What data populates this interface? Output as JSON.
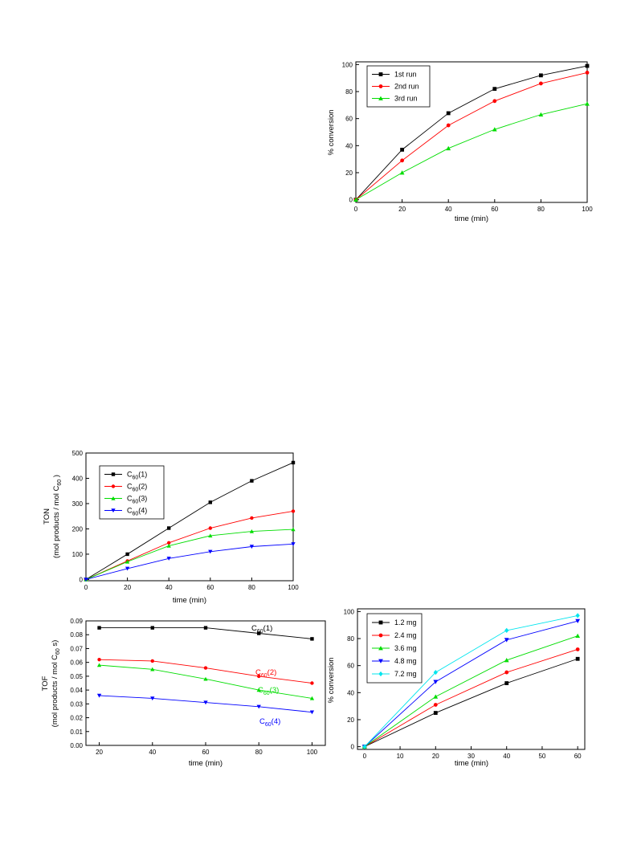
{
  "chart_data": [
    {
      "id": "run",
      "type": "line",
      "xlabel": "time (min)",
      "ylabel": "% conversion",
      "xlim": [
        0,
        100
      ],
      "ylim": [
        -2,
        102
      ],
      "xticks": [
        0,
        20,
        40,
        60,
        80,
        100
      ],
      "yticks": [
        0,
        20,
        40,
        60,
        80,
        100
      ],
      "x": [
        0,
        20,
        40,
        60,
        80,
        100
      ],
      "legend_position": "top-left",
      "series": [
        {
          "name": "1st run",
          "color": "#000000",
          "marker": "square",
          "values": [
            0,
            37,
            64,
            82,
            92,
            99
          ]
        },
        {
          "name": "2nd run",
          "color": "#ff0000",
          "marker": "circle",
          "values": [
            0,
            29,
            55,
            73,
            86,
            94
          ]
        },
        {
          "name": "3rd run",
          "color": "#00dd00",
          "marker": "triangle-up",
          "values": [
            0,
            20,
            38,
            52,
            63,
            71
          ]
        }
      ]
    },
    {
      "id": "ton",
      "type": "line",
      "xlabel": "time (min)",
      "ylabel_line1": "TON",
      "ylabel_line2": "(mol products / mol C",
      "ylabel_sub": "60",
      "ylabel_end": " )",
      "xlim": [
        0,
        100
      ],
      "ylim": [
        -5,
        500
      ],
      "xticks": [
        0,
        20,
        40,
        60,
        80,
        100
      ],
      "yticks": [
        0,
        100,
        200,
        300,
        400,
        500
      ],
      "x": [
        0,
        20,
        40,
        60,
        80,
        100
      ],
      "legend_position": "top-left",
      "series": [
        {
          "name": "C60(1)",
          "name_main": "C",
          "name_sub": "60",
          "name_end": "(1)",
          "color": "#000000",
          "marker": "square",
          "values": [
            0,
            100,
            203,
            305,
            390,
            462
          ]
        },
        {
          "name": "C60(2)",
          "name_main": "C",
          "name_sub": "60",
          "name_end": "(2)",
          "color": "#ff0000",
          "marker": "circle",
          "values": [
            0,
            73,
            145,
            203,
            243,
            270
          ]
        },
        {
          "name": "C60(3)",
          "name_main": "C",
          "name_sub": "60",
          "name_end": "(3)",
          "color": "#00dd00",
          "marker": "triangle-up",
          "values": [
            0,
            70,
            133,
            173,
            190,
            198
          ]
        },
        {
          "name": "C60(4)",
          "name_main": "C",
          "name_sub": "60",
          "name_end": "(4)",
          "color": "#0000ff",
          "marker": "triangle-down",
          "values": [
            0,
            43,
            83,
            110,
            130,
            140
          ]
        }
      ]
    },
    {
      "id": "tof",
      "type": "line",
      "xlabel": "time (min)",
      "ylabel_line1": "TOF",
      "ylabel_line2": "(mol products / mol C",
      "ylabel_sub": "60",
      "ylabel_end": " s)",
      "xlim": [
        15,
        105
      ],
      "ylim": [
        0,
        0.09
      ],
      "xticks": [
        20,
        40,
        60,
        80,
        100
      ],
      "yticks": [
        0.0,
        0.01,
        0.02,
        0.03,
        0.04,
        0.05,
        0.06,
        0.07,
        0.08,
        0.09
      ],
      "ytick_labels": [
        "0.00",
        "0.01",
        "0.02",
        "0.03",
        "0.04",
        "0.05",
        "0.06",
        "0.07",
        "0.08",
        "0.09"
      ],
      "x": [
        20,
        40,
        60,
        80,
        100
      ],
      "series": [
        {
          "name": "C60(1)",
          "name_main": "C",
          "name_sub": "60",
          "name_end": "(1)",
          "color": "#000000",
          "marker": "square",
          "values": [
            0.085,
            0.085,
            0.085,
            0.081,
            0.077
          ]
        },
        {
          "name": "C60(2)",
          "name_main": "C",
          "name_sub": "60",
          "name_end": "(2)",
          "color": "#ff0000",
          "marker": "circle",
          "values": [
            0.062,
            0.061,
            0.056,
            0.05,
            0.045
          ]
        },
        {
          "name": "C60(3)",
          "name_main": "C",
          "name_sub": "60",
          "name_end": "(3)",
          "color": "#00dd00",
          "marker": "triangle-up",
          "values": [
            0.058,
            0.055,
            0.048,
            0.04,
            0.034
          ]
        },
        {
          "name": "C60(4)",
          "name_main": "C",
          "name_sub": "60",
          "name_end": "(4)",
          "color": "#0000ff",
          "marker": "triangle-down",
          "values": [
            0.036,
            0.034,
            0.031,
            0.028,
            0.024
          ]
        }
      ]
    },
    {
      "id": "mass",
      "type": "line",
      "xlabel": "time (min)",
      "ylabel": "% conversion",
      "xlim": [
        -2,
        62
      ],
      "ylim": [
        -2,
        102
      ],
      "xticks": [
        0,
        10,
        20,
        30,
        40,
        50,
        60
      ],
      "yticks": [
        0,
        20,
        40,
        60,
        80,
        100
      ],
      "x": [
        0,
        20,
        40,
        60
      ],
      "legend_position": "top-left",
      "series": [
        {
          "name": "1.2 mg",
          "color": "#000000",
          "marker": "square",
          "values": [
            0,
            25,
            47,
            65
          ]
        },
        {
          "name": "2.4 mg",
          "color": "#ff0000",
          "marker": "circle",
          "values": [
            0,
            31,
            55,
            72
          ]
        },
        {
          "name": "3.6 mg",
          "color": "#00dd00",
          "marker": "triangle-up",
          "values": [
            0,
            37,
            64,
            82
          ]
        },
        {
          "name": "4.8 mg",
          "color": "#0000ff",
          "marker": "triangle-down",
          "values": [
            0,
            48,
            79,
            93
          ]
        },
        {
          "name": "7.2 mg",
          "color": "#00e5ee",
          "marker": "diamond",
          "values": [
            0,
            55,
            86,
            97
          ]
        }
      ]
    }
  ]
}
